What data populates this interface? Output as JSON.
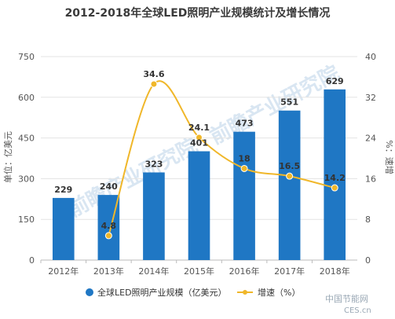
{
  "chart_data": {
    "type": "bar",
    "title": "2012-2018年全球LED照明产业规模统计及增长情况",
    "categories": [
      "2012年",
      "2013年",
      "2014年",
      "2015年",
      "2016年",
      "2017年",
      "2018年"
    ],
    "series": [
      {
        "name": "全球LED照明产业规模（亿美元）",
        "kind": "bar",
        "axis": "left",
        "color": "#1f77c4",
        "values": [
          229,
          240,
          323,
          401,
          473,
          551,
          629
        ]
      },
      {
        "name": "增速（%）",
        "kind": "line",
        "axis": "right",
        "color": "#f0b72a",
        "values": [
          null,
          4.8,
          34.6,
          24.1,
          18,
          16.5,
          14.2
        ]
      }
    ],
    "ylabel_left": "单位：亿美元",
    "ylabel_right": "%：速增",
    "ylim_left": [
      0,
      750
    ],
    "yticks_left": [
      0,
      150,
      300,
      450,
      600,
      750
    ],
    "ylim_right": [
      0,
      40
    ],
    "yticks_right": [
      0,
      8,
      16,
      24,
      32,
      40
    ],
    "grid": true,
    "legend_position": "bottom"
  },
  "watermarks": {
    "main": "前瞻产业研究院",
    "corner": "中国节能网",
    "corner_sub": "CES.cn"
  }
}
